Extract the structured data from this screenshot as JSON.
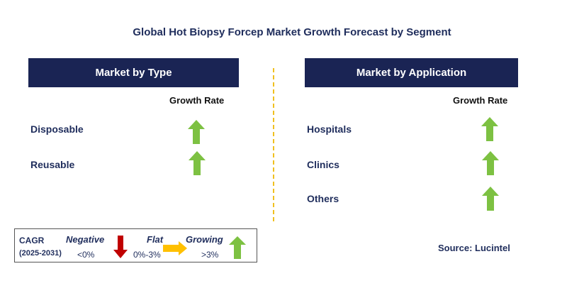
{
  "title": "Global Hot Biopsy Forcep Market Growth Forecast by Segment",
  "left_panel": {
    "header": "Market by Type",
    "growth_label": "Growth Rate",
    "items": [
      {
        "label": "Disposable",
        "trend": "growing"
      },
      {
        "label": "Reusable",
        "trend": "growing"
      }
    ]
  },
  "right_panel": {
    "header": "Market by Application",
    "growth_label": "Growth Rate",
    "items": [
      {
        "label": "Hospitals",
        "trend": "growing"
      },
      {
        "label": "Clinics",
        "trend": "growing"
      },
      {
        "label": "Others",
        "trend": "growing"
      }
    ]
  },
  "legend": {
    "cagr_label": "CAGR",
    "period": "(2025-2031)",
    "negative": {
      "label": "Negative",
      "range": "<0%",
      "color": "#c00000"
    },
    "flat": {
      "label": "Flat",
      "range": "0%-3%",
      "color": "#ffc000"
    },
    "growing": {
      "label": "Growing",
      "range": ">3%",
      "color": "#7dc142"
    }
  },
  "source": "Source: Lucintel",
  "colors": {
    "header_bg": "#1a2454",
    "divider": "#f0c020",
    "up_arrow": "#7dc142"
  }
}
